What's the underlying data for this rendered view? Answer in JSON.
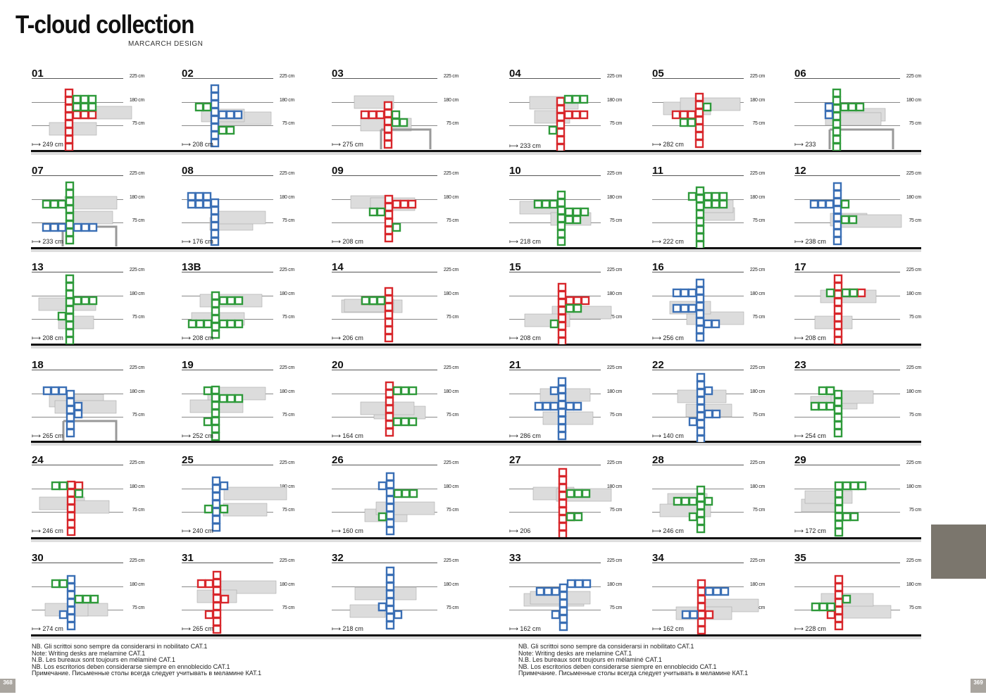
{
  "header": {
    "title": "T-cloud collection",
    "subtitle": "MARCARCH DESIGN"
  },
  "labels": {
    "h225": "225 cm",
    "h180": "180 cm",
    "h75": "75 cm"
  },
  "colors": {
    "green": "#2e9a3a",
    "red": "#d8262b",
    "blue": "#3a6fb5",
    "grey": "#dcdcdc",
    "tab": "#7b766d"
  },
  "compositions": [
    {
      "num": "01",
      "width": "249 cm",
      "color": "red",
      "sec": "green",
      "desk": "none"
    },
    {
      "num": "02",
      "width": "208 cm",
      "color": "blue",
      "sec": "green",
      "desk": "none"
    },
    {
      "num": "03",
      "width": "275 cm",
      "color": "red",
      "sec": "green",
      "desk": "yes"
    },
    {
      "num": "04",
      "width": "233 cm",
      "color": "red",
      "sec": "green",
      "desk": "none"
    },
    {
      "num": "05",
      "width": "282 cm",
      "color": "red",
      "sec": "green",
      "desk": "none"
    },
    {
      "num": "06",
      "width": "233",
      "color": "green",
      "sec": "blue",
      "desk": "yes"
    },
    {
      "num": "07",
      "width": "233 cm",
      "color": "green",
      "sec": "blue",
      "desk": "yes"
    },
    {
      "num": "08",
      "width": "176 cm",
      "color": "blue",
      "sec": "blue",
      "desk": "none"
    },
    {
      "num": "09",
      "width": "208 cm",
      "color": "red",
      "sec": "green",
      "desk": "none"
    },
    {
      "num": "10",
      "width": "218 cm",
      "color": "green",
      "sec": "green",
      "desk": "none"
    },
    {
      "num": "11",
      "width": "222 cm",
      "color": "green",
      "sec": "green",
      "desk": "none"
    },
    {
      "num": "12",
      "width": "238 cm",
      "color": "blue",
      "sec": "green",
      "desk": "none"
    },
    {
      "num": "13",
      "width": "208 cm",
      "color": "green",
      "sec": "green",
      "desk": "none"
    },
    {
      "num": "13B",
      "width": "208 cm",
      "color": "green",
      "sec": "green",
      "desk": "none"
    },
    {
      "num": "14",
      "width": "206 cm",
      "color": "red",
      "sec": "green",
      "desk": "none"
    },
    {
      "num": "15",
      "width": "208 cm",
      "color": "red",
      "sec": "green",
      "desk": "none"
    },
    {
      "num": "16",
      "width": "256 cm",
      "color": "blue",
      "sec": "blue",
      "desk": "none"
    },
    {
      "num": "17",
      "width": "208 cm",
      "color": "red",
      "sec": "green",
      "desk": "none"
    },
    {
      "num": "18",
      "width": "265 cm",
      "color": "blue",
      "sec": "blue",
      "desk": "yes"
    },
    {
      "num": "19",
      "width": "252 cm",
      "color": "green",
      "sec": "green",
      "desk": "none"
    },
    {
      "num": "20",
      "width": "164 cm",
      "color": "red",
      "sec": "green",
      "desk": "none"
    },
    {
      "num": "21",
      "width": "286 cm",
      "color": "blue",
      "sec": "blue",
      "desk": "none"
    },
    {
      "num": "22",
      "width": "140 cm",
      "color": "blue",
      "sec": "blue",
      "desk": "none"
    },
    {
      "num": "23",
      "width": "254 cm",
      "color": "green",
      "sec": "green",
      "desk": "none"
    },
    {
      "num": "24",
      "width": "246 cm",
      "color": "red",
      "sec": "green",
      "desk": "none"
    },
    {
      "num": "25",
      "width": "240 cm",
      "color": "blue",
      "sec": "green",
      "desk": "none"
    },
    {
      "num": "26",
      "width": "160 cm",
      "color": "blue",
      "sec": "green",
      "desk": "none"
    },
    {
      "num": "27",
      "width": "206",
      "color": "red",
      "sec": "green",
      "desk": "none"
    },
    {
      "num": "28",
      "width": "246 cm",
      "color": "green",
      "sec": "green",
      "desk": "none"
    },
    {
      "num": "29",
      "width": "172 cm",
      "color": "green",
      "sec": "green",
      "desk": "none"
    },
    {
      "num": "30",
      "width": "274 cm",
      "color": "blue",
      "sec": "green",
      "desk": "none"
    },
    {
      "num": "31",
      "width": "265 cm",
      "color": "red",
      "sec": "red",
      "desk": "none"
    },
    {
      "num": "32",
      "width": "218 cm",
      "color": "blue",
      "sec": "blue",
      "desk": "none"
    },
    {
      "num": "33",
      "width": "162 cm",
      "color": "blue",
      "sec": "blue",
      "desk": "none"
    },
    {
      "num": "34",
      "width": "162 cm",
      "color": "red",
      "sec": "blue",
      "desk": "none"
    },
    {
      "num": "35",
      "width": "228 cm",
      "color": "red",
      "sec": "green",
      "desk": "none"
    }
  ],
  "notes": [
    "NB. Gli scrittoi sono sempre da considerarsi in nobilitato CAT.1",
    "Note: Writing desks are melamine CAT.1",
    "N.B. Les bureaux sont toujours en mélaminé CAT.1",
    "NB. Los escritorios deben considerarse siempre en ennoblecido CAT.1",
    "Примечание. Письменные столы всегда следует учитывать в меламине КАТ.1"
  ],
  "pages": {
    "left": "368",
    "right": "369"
  }
}
